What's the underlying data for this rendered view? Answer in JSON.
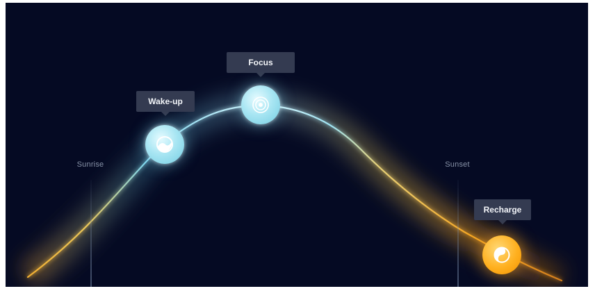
{
  "markers": {
    "sunrise_label": "Sunrise",
    "sunset_label": "Sunset"
  },
  "phases": {
    "wake_up": {
      "label": "Wake-up",
      "icon": "sunrise-wave-icon"
    },
    "focus": {
      "label": "Focus",
      "icon": "concentric-circles-icon"
    },
    "recharge": {
      "label": "Recharge",
      "icon": "yin-yang-icon"
    }
  },
  "colors": {
    "background": "#050a23",
    "tooltip": "#343b51",
    "cool_node": "#a9e6f3",
    "warm_node": "#ffb01f",
    "curve_cool": "#b8ecf8",
    "curve_warm": "#f5a623"
  }
}
